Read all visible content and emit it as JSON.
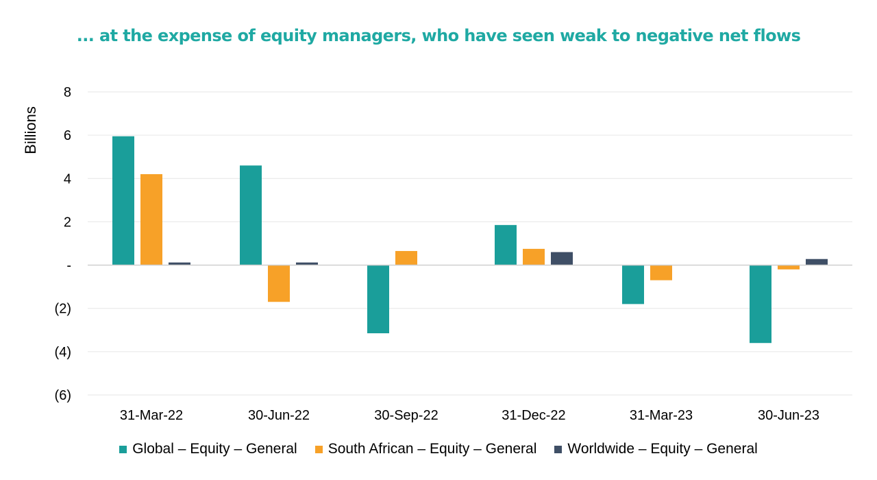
{
  "title": "... at the expense of equity managers, who have seen weak to negative net flows",
  "chart_data": {
    "type": "bar",
    "title": "... at the expense of equity managers, who have seen weak to negative net flows",
    "xlabel": "",
    "ylabel": "Billions",
    "ylim": [
      -6,
      8
    ],
    "yticks": [
      {
        "value": 8,
        "label": "8"
      },
      {
        "value": 6,
        "label": "6"
      },
      {
        "value": 4,
        "label": "4"
      },
      {
        "value": 2,
        "label": "2"
      },
      {
        "value": 0,
        "label": "-"
      },
      {
        "value": -2,
        "label": "(2)"
      },
      {
        "value": -4,
        "label": "(4)"
      },
      {
        "value": -6,
        "label": "(6)"
      }
    ],
    "grid": true,
    "legend_position": "bottom",
    "categories": [
      "31-Mar-22",
      "30-Jun-22",
      "30-Sep-22",
      "31-Dec-22",
      "31-Mar-23",
      "30-Jun-23"
    ],
    "series": [
      {
        "name": "Global – Equity – General",
        "color": "#1a9e9a",
        "values": [
          5.95,
          4.6,
          -3.15,
          1.85,
          -1.8,
          -3.6
        ]
      },
      {
        "name": "South African – Equity – General",
        "color": "#f7a128",
        "values": [
          4.2,
          -1.7,
          0.65,
          0.75,
          -0.7,
          -0.2
        ]
      },
      {
        "name": "Worldwide – Equity – General",
        "color": "#3f4f66",
        "values": [
          0.12,
          0.12,
          0.0,
          0.6,
          0.0,
          0.28
        ]
      }
    ]
  }
}
